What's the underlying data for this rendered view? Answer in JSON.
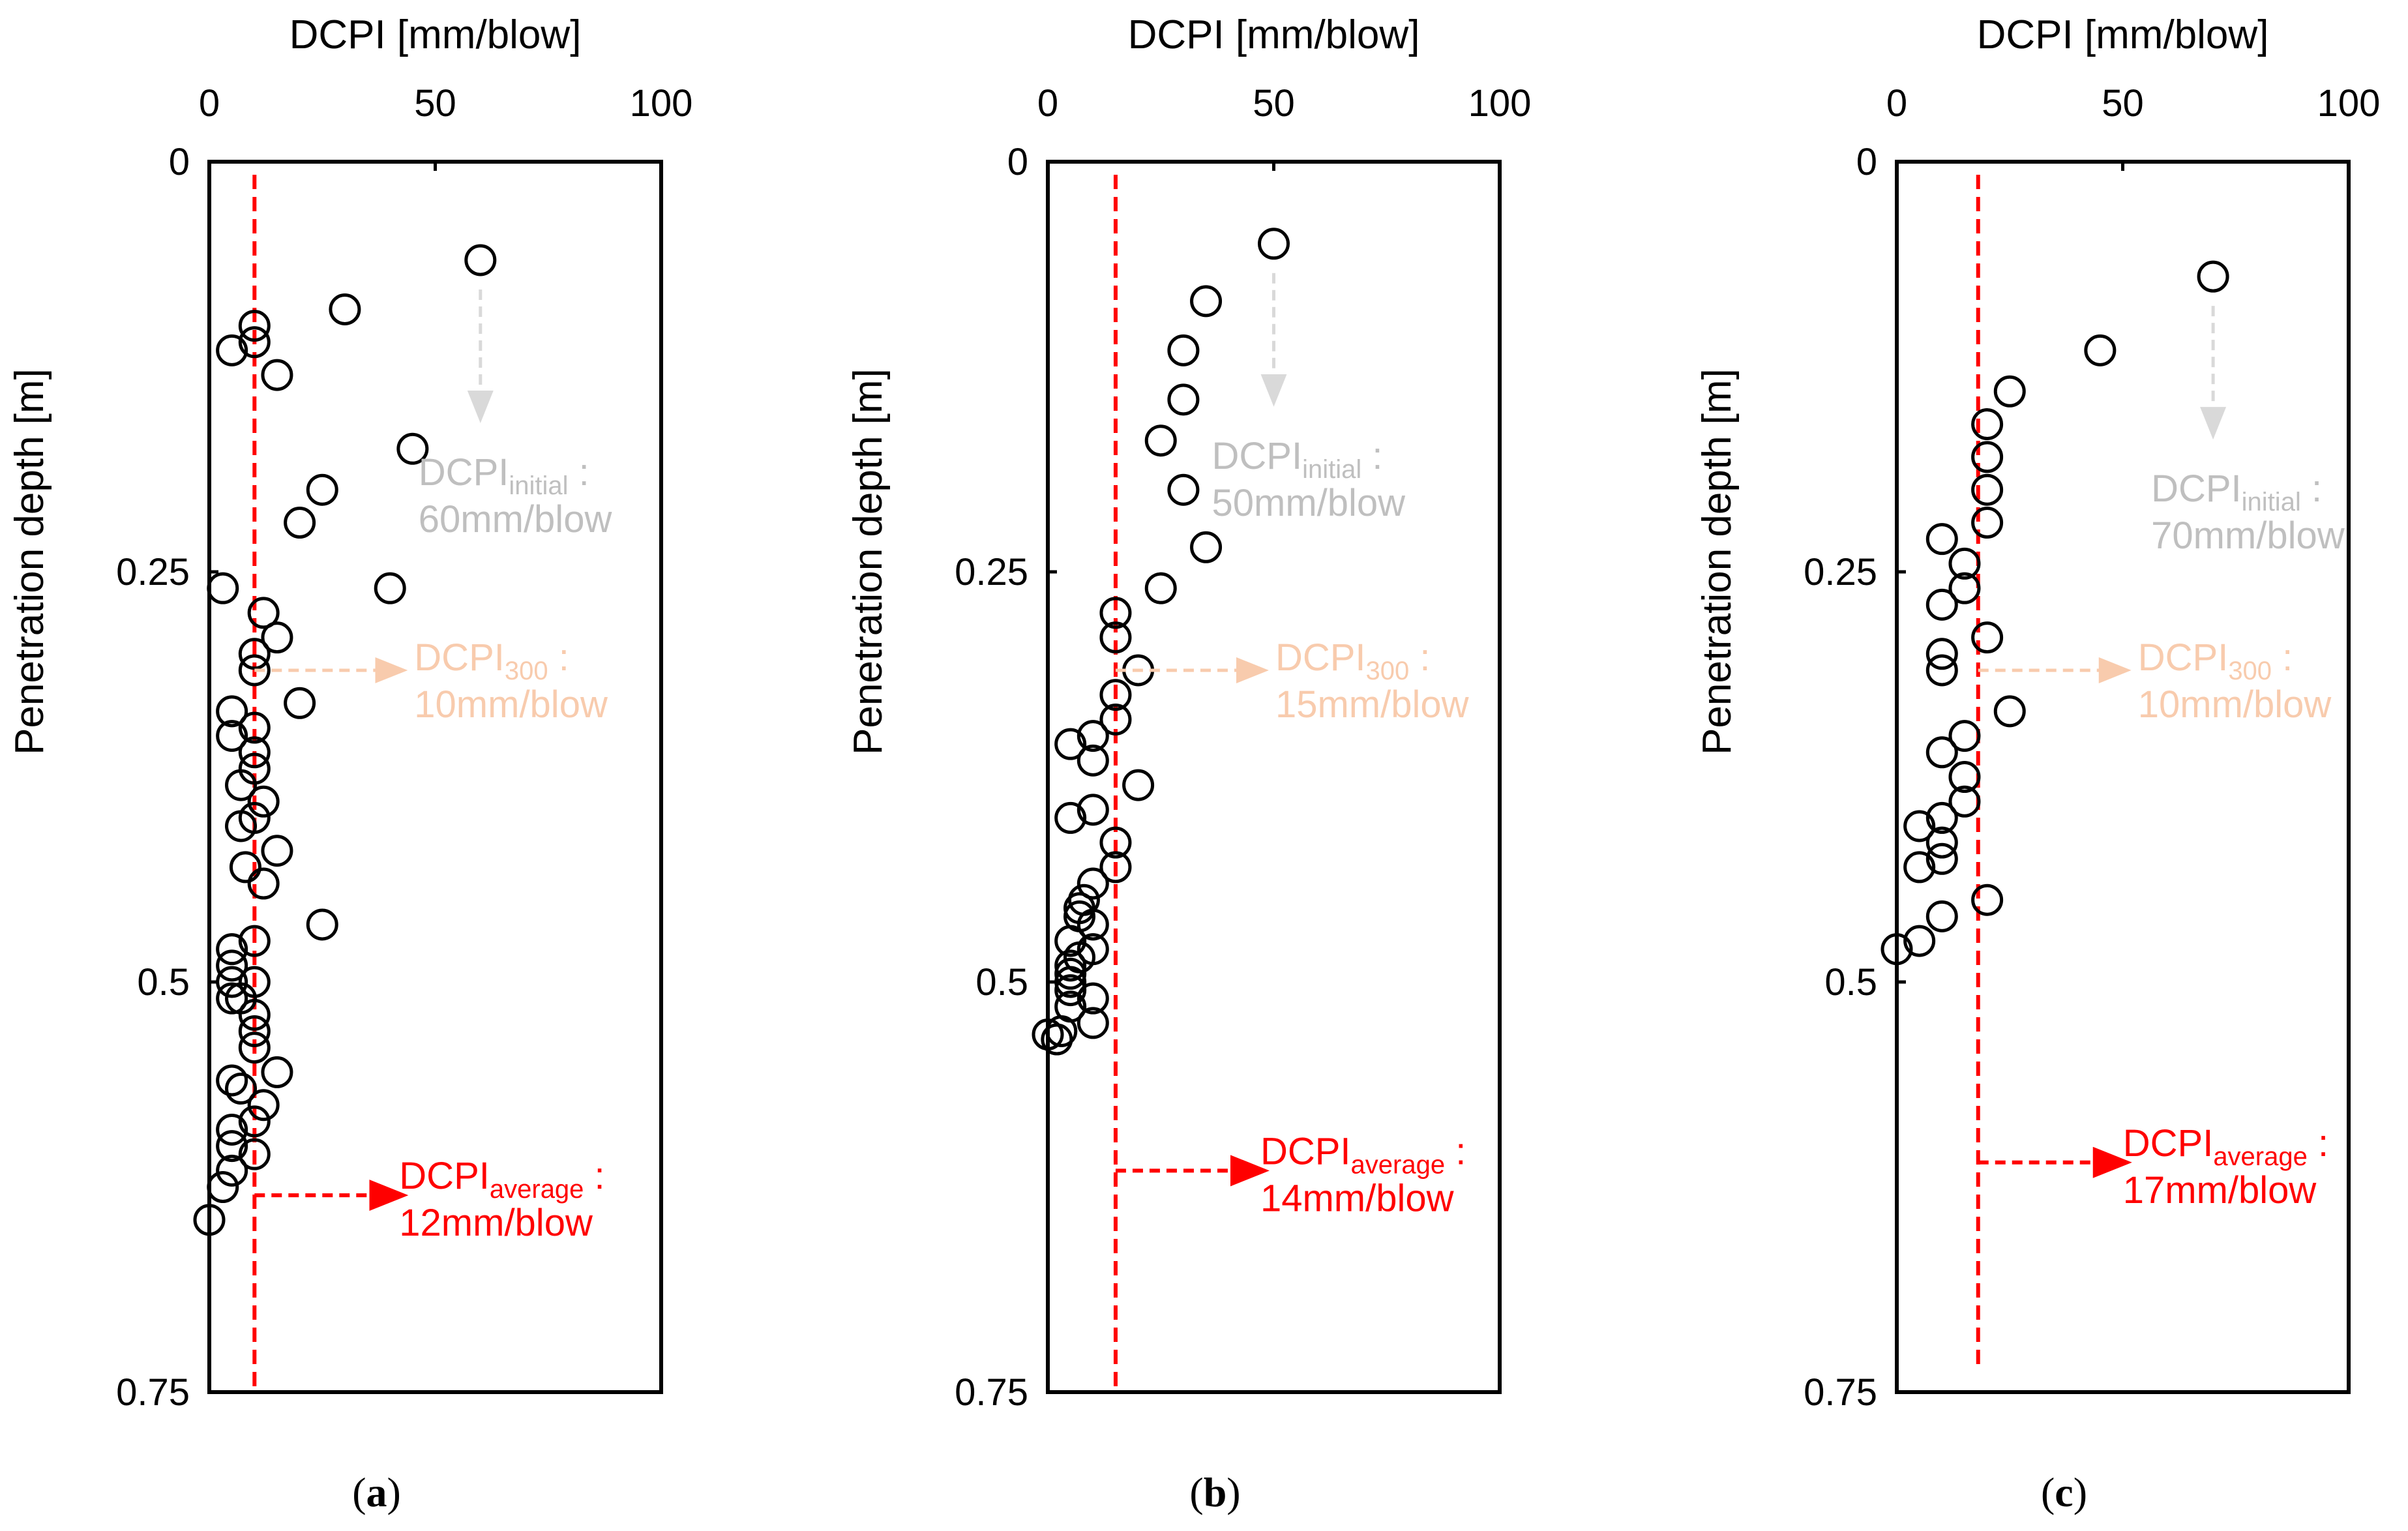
{
  "colors": {
    "axis": "#000000",
    "marker": "#000000",
    "average": "#ff0000",
    "initial": "#bfbfbf",
    "initial_arrow": "#d9d9d9",
    "d300": "#f8cbad"
  },
  "chart_data": [
    {
      "type": "scatter",
      "panel_label": "(a)",
      "panel_letter": "a",
      "xlabel": "DCPI [mm/blow]",
      "ylabel": "Penetration depth [m]",
      "xlim": [
        0,
        100
      ],
      "ylim": [
        0,
        0.75
      ],
      "y_inverted": true,
      "xticks": [
        "0",
        "50",
        "100"
      ],
      "yticks": [
        "0",
        "0.25",
        "0.5",
        "0.75"
      ],
      "average_line_x": 10,
      "average_line_ymax": 0.75,
      "points": [
        [
          60,
          0.06
        ],
        [
          30,
          0.09
        ],
        [
          10,
          0.1
        ],
        [
          10,
          0.11
        ],
        [
          5,
          0.115
        ],
        [
          15,
          0.13
        ],
        [
          45,
          0.175
        ],
        [
          25,
          0.2
        ],
        [
          20,
          0.22
        ],
        [
          3,
          0.26
        ],
        [
          40,
          0.26
        ],
        [
          12,
          0.275
        ],
        [
          15,
          0.29
        ],
        [
          10,
          0.3
        ],
        [
          10,
          0.31
        ],
        [
          20,
          0.33
        ],
        [
          5,
          0.335
        ],
        [
          10,
          0.345
        ],
        [
          5,
          0.35
        ],
        [
          10,
          0.36
        ],
        [
          10,
          0.37
        ],
        [
          7,
          0.38
        ],
        [
          12,
          0.39
        ],
        [
          10,
          0.4
        ],
        [
          7,
          0.405
        ],
        [
          15,
          0.42
        ],
        [
          8,
          0.43
        ],
        [
          12,
          0.44
        ],
        [
          25,
          0.465
        ],
        [
          10,
          0.475
        ],
        [
          5,
          0.48
        ],
        [
          5,
          0.49
        ],
        [
          5,
          0.5
        ],
        [
          10,
          0.5
        ],
        [
          5,
          0.51
        ],
        [
          7,
          0.51
        ],
        [
          10,
          0.52
        ],
        [
          10,
          0.53
        ],
        [
          10,
          0.54
        ],
        [
          15,
          0.555
        ],
        [
          5,
          0.56
        ],
        [
          7,
          0.565
        ],
        [
          12,
          0.575
        ],
        [
          10,
          0.585
        ],
        [
          5,
          0.59
        ],
        [
          5,
          0.6
        ],
        [
          10,
          0.605
        ],
        [
          5,
          0.615
        ],
        [
          3,
          0.625
        ],
        [
          0,
          0.645
        ]
      ],
      "annotations": {
        "initial": {
          "main": "DCPI",
          "sub": "initial",
          "tail": " :",
          "value": "60mm/blow",
          "depth": 0.06,
          "x": 60
        },
        "d300": {
          "main": "DCPI",
          "sub": "300",
          "tail": " :",
          "value": "10mm/blow",
          "depth": 0.31,
          "x": 10
        },
        "average": {
          "main": "DCPI",
          "sub": "average",
          "tail": " :",
          "value": "12mm/blow",
          "depth": 0.63,
          "x": 10
        }
      }
    },
    {
      "type": "scatter",
      "panel_label": "(b)",
      "panel_letter": "b",
      "xlabel": "DCPI [mm/blow]",
      "ylabel": "Penetration depth [m]",
      "xlim": [
        0,
        100
      ],
      "ylim": [
        0,
        0.75
      ],
      "y_inverted": true,
      "xticks": [
        "0",
        "50",
        "100"
      ],
      "yticks": [
        "0",
        "0.25",
        "0.5",
        "0.75"
      ],
      "average_line_x": 15,
      "average_line_ymax": 0.75,
      "points": [
        [
          50,
          0.05
        ],
        [
          35,
          0.085
        ],
        [
          30,
          0.115
        ],
        [
          30,
          0.145
        ],
        [
          25,
          0.17
        ],
        [
          30,
          0.2
        ],
        [
          35,
          0.235
        ],
        [
          25,
          0.26
        ],
        [
          15,
          0.275
        ],
        [
          15,
          0.29
        ],
        [
          20,
          0.31
        ],
        [
          15,
          0.325
        ],
        [
          5,
          0.355
        ],
        [
          15,
          0.34
        ],
        [
          10,
          0.35
        ],
        [
          10,
          0.365
        ],
        [
          20,
          0.38
        ],
        [
          10,
          0.395
        ],
        [
          5,
          0.4
        ],
        [
          15,
          0.415
        ],
        [
          15,
          0.43
        ],
        [
          10,
          0.44
        ],
        [
          8,
          0.45
        ],
        [
          7,
          0.455
        ],
        [
          7,
          0.46
        ],
        [
          10,
          0.465
        ],
        [
          5,
          0.475
        ],
        [
          10,
          0.48
        ],
        [
          7,
          0.485
        ],
        [
          5,
          0.49
        ],
        [
          5,
          0.495
        ],
        [
          5,
          0.5
        ],
        [
          5,
          0.505
        ],
        [
          10,
          0.51
        ],
        [
          5,
          0.515
        ],
        [
          10,
          0.525
        ],
        [
          3,
          0.53
        ],
        [
          0,
          0.532
        ],
        [
          2,
          0.535
        ]
      ],
      "annotations": {
        "initial": {
          "main": "DCPI",
          "sub": "initial",
          "tail": " :",
          "value": "50mm/blow",
          "depth": 0.05,
          "x": 50
        },
        "d300": {
          "main": "DCPI",
          "sub": "300",
          "tail": " :",
          "value": "15mm/blow",
          "depth": 0.31,
          "x": 15
        },
        "average": {
          "main": "DCPI",
          "sub": "average",
          "tail": " :",
          "value": "14mm/blow",
          "depth": 0.615,
          "x": 15
        }
      }
    },
    {
      "type": "scatter",
      "panel_label": "(c)",
      "panel_letter": "c",
      "xlabel": "DCPI [mm/blow]",
      "ylabel": "Penetration depth [m]",
      "xlim": [
        0,
        100
      ],
      "ylim": [
        0,
        0.75
      ],
      "y_inverted": true,
      "xticks": [
        "0",
        "50",
        "100"
      ],
      "yticks": [
        "0",
        "0.25",
        "0.5",
        "0.75"
      ],
      "average_line_x": 18,
      "average_line_ymax": 0.735,
      "points": [
        [
          70,
          0.07
        ],
        [
          45,
          0.115
        ],
        [
          25,
          0.14
        ],
        [
          20,
          0.16
        ],
        [
          20,
          0.18
        ],
        [
          20,
          0.2
        ],
        [
          20,
          0.22
        ],
        [
          10,
          0.23
        ],
        [
          15,
          0.245
        ],
        [
          15,
          0.26
        ],
        [
          10,
          0.27
        ],
        [
          20,
          0.29
        ],
        [
          10,
          0.3
        ],
        [
          10,
          0.31
        ],
        [
          25,
          0.335
        ],
        [
          15,
          0.35
        ],
        [
          10,
          0.36
        ],
        [
          15,
          0.375
        ],
        [
          15,
          0.39
        ],
        [
          10,
          0.4
        ],
        [
          5,
          0.405
        ],
        [
          10,
          0.415
        ],
        [
          10,
          0.425
        ],
        [
          5,
          0.43
        ],
        [
          20,
          0.45
        ],
        [
          10,
          0.46
        ],
        [
          5,
          0.475
        ],
        [
          0,
          0.48
        ]
      ],
      "annotations": {
        "initial": {
          "main": "DCPI",
          "sub": "initial",
          "tail": " :",
          "value": "70mm/blow",
          "depth": 0.07,
          "x": 70
        },
        "d300": {
          "main": "DCPI",
          "sub": "300",
          "tail": " :",
          "value": "10mm/blow",
          "depth": 0.31,
          "x": 18
        },
        "average": {
          "main": "DCPI",
          "sub": "average",
          "tail": " :",
          "value": "17mm/blow",
          "depth": 0.61,
          "x": 18
        }
      }
    }
  ]
}
